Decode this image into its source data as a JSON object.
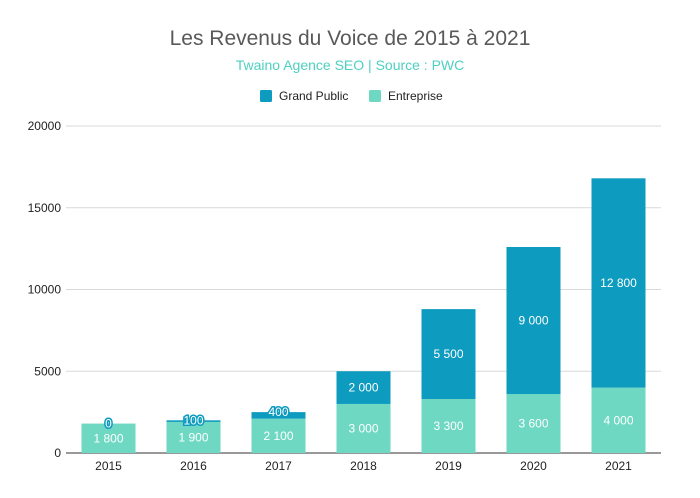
{
  "chart_data": {
    "type": "bar",
    "stacked": true,
    "title": "Les Revenus du Voice de 2015 à 2021",
    "subtitle": "Twaino Agence SEO | Source : PWC",
    "categories": [
      "2015",
      "2016",
      "2017",
      "2018",
      "2019",
      "2020",
      "2021"
    ],
    "series": [
      {
        "name": "Entreprise",
        "values": [
          1800,
          1900,
          2100,
          3000,
          3300,
          3600,
          4000
        ],
        "labels": [
          "1 800",
          "1 900",
          "2 100",
          "3 000",
          "3 300",
          "3 600",
          "4 000"
        ],
        "color": "#6ed8c2"
      },
      {
        "name": "Grand Public",
        "values": [
          0,
          100,
          400,
          2000,
          5500,
          9000,
          12800
        ],
        "labels": [
          "0",
          "100",
          "400",
          "2 000",
          "5 500",
          "9 000",
          "12 800"
        ],
        "color": "#0d9bbf"
      }
    ],
    "legend_order": [
      "Grand Public",
      "Entreprise"
    ],
    "legend_position": "top",
    "ylim": [
      0,
      20000
    ],
    "yticks": [
      "0",
      "5000",
      "10000",
      "15000",
      "20000"
    ],
    "grid": true
  }
}
